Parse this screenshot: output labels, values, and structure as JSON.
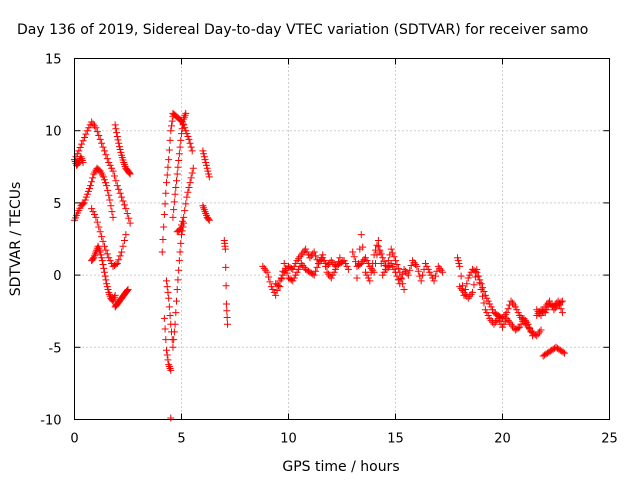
{
  "chart_data": {
    "type": "scatter",
    "title": "Day 136 of 2019, Sidereal Day-to-day VTEC variation (SDTVAR) for receiver samo",
    "xlabel": "GPS time / hours",
    "ylabel": "SDTVAR / TECUs",
    "xlim": [
      0,
      25
    ],
    "ylim": [
      -10,
      15
    ],
    "xticks": [
      0,
      5,
      10,
      15,
      20,
      25
    ],
    "yticks": [
      -10,
      -5,
      0,
      5,
      10,
      15
    ],
    "xtick_labels": [
      "0",
      "5",
      "10",
      "15",
      "20",
      "25"
    ],
    "ytick_labels": [
      "-10",
      "-5",
      "0",
      "5",
      "10",
      "15"
    ],
    "grid": true,
    "marker": "+",
    "color": "#ff0000",
    "segments": [
      {
        "x": [
          0.0,
          0.2,
          0.4,
          0.6,
          0.8,
          1.0,
          1.2,
          1.4,
          1.6,
          1.8,
          2.0,
          2.2,
          2.4,
          2.6
        ],
        "y": [
          8.0,
          8.6,
          9.3,
          10.0,
          10.6,
          10.2,
          9.4,
          8.6,
          7.8,
          7.2,
          6.2,
          5.4,
          4.6,
          3.6
        ]
      },
      {
        "x": [
          0.0,
          0.15,
          0.3,
          0.45,
          0.6,
          0.75,
          0.9,
          1.05,
          1.2,
          1.35,
          1.5,
          1.65,
          1.8
        ],
        "y": [
          3.8,
          4.3,
          4.8,
          5.0,
          5.6,
          6.2,
          7.0,
          7.4,
          7.2,
          6.8,
          6.2,
          5.2,
          4.0
        ]
      },
      {
        "x": [
          0.0,
          0.1,
          0.2,
          0.3,
          0.4
        ],
        "y": [
          8.0,
          7.6,
          7.8,
          8.2,
          7.8
        ]
      },
      {
        "x": [
          0.8,
          0.9,
          1.0,
          1.1,
          1.2,
          1.3,
          1.4,
          1.5,
          1.6,
          1.7,
          1.8,
          1.9
        ],
        "y": [
          1.0,
          1.2,
          1.6,
          2.0,
          1.6,
          1.0,
          0.2,
          -0.6,
          -1.2,
          -1.6,
          -1.8,
          -1.4
        ]
      },
      {
        "x": [
          0.8,
          1.0,
          1.2,
          1.4,
          1.6,
          1.8,
          2.0,
          2.2,
          2.4
        ],
        "y": [
          4.6,
          4.0,
          3.0,
          2.0,
          1.2,
          0.6,
          0.8,
          1.6,
          2.8
        ]
      },
      {
        "x": [
          1.9,
          2.0,
          2.1,
          2.2,
          2.3,
          2.4,
          2.5,
          2.6
        ],
        "y": [
          10.4,
          9.6,
          8.9,
          8.3,
          7.8,
          7.4,
          7.2,
          7.0
        ]
      },
      {
        "x": [
          1.9,
          2.0,
          2.1,
          2.2,
          2.3,
          2.4,
          2.5
        ],
        "y": [
          -2.2,
          -2.0,
          -1.8,
          -1.6,
          -1.4,
          -1.2,
          -1.0
        ]
      },
      {
        "x": [
          4.1,
          4.2,
          4.3,
          4.4,
          4.5,
          4.6
        ],
        "y": [
          1.6,
          4.2,
          6.4,
          8.0,
          10.0,
          11.0
        ]
      },
      {
        "x": [
          4.2,
          4.3,
          4.4,
          4.5
        ],
        "y": [
          -3.0,
          -5.2,
          -6.2,
          -6.6
        ]
      },
      {
        "x": [
          4.3,
          4.4,
          4.5,
          4.6,
          4.7,
          4.8,
          4.9,
          5.0,
          5.1
        ],
        "y": [
          -0.4,
          -1.6,
          -3.4,
          -5.0,
          -3.4,
          -1.0,
          1.0,
          2.8,
          3.6
        ]
      },
      {
        "x": [
          4.6,
          4.7,
          4.8,
          4.9,
          5.0,
          5.1,
          5.2
        ],
        "y": [
          4.0,
          5.6,
          7.0,
          8.4,
          9.8,
          10.8,
          11.2
        ]
      },
      {
        "x": [
          4.6,
          4.75,
          4.9,
          5.05,
          5.2,
          5.35,
          5.5
        ],
        "y": [
          11.2,
          11.0,
          10.8,
          10.6,
          10.0,
          9.4,
          8.6
        ]
      },
      {
        "x": [
          4.8,
          4.95,
          5.1,
          5.25,
          5.4,
          5.55
        ],
        "y": [
          3.0,
          3.2,
          4.0,
          5.4,
          6.4,
          7.4
        ]
      },
      {
        "x": [
          4.5
        ],
        "y": [
          -9.9
        ]
      },
      {
        "x": [
          6.0,
          6.1,
          6.2,
          6.3
        ],
        "y": [
          8.6,
          8.0,
          7.4,
          6.8
        ]
      },
      {
        "x": [
          6.0,
          6.1,
          6.2,
          6.3
        ],
        "y": [
          4.8,
          4.4,
          4.0,
          3.8
        ]
      },
      {
        "x": [
          7.0,
          7.05,
          7.1,
          7.15
        ],
        "y": [
          2.4,
          1.8,
          -2.0,
          -3.4
        ]
      },
      {
        "x": [
          8.8,
          9.0,
          9.2,
          9.4,
          9.6,
          9.8,
          10.0,
          10.2,
          10.4,
          10.6,
          10.8,
          11.0,
          11.2,
          11.4,
          11.6,
          11.8,
          12.0,
          12.2,
          12.4,
          12.6,
          12.8
        ],
        "y": [
          0.6,
          0.2,
          -0.8,
          -1.4,
          -0.4,
          0.2,
          0.6,
          0.4,
          1.0,
          1.4,
          1.8,
          1.2,
          1.6,
          0.8,
          1.2,
          0.6,
          1.0,
          0.6,
          0.8,
          1.0,
          0.4
        ]
      },
      {
        "x": [
          9.4,
          9.6,
          9.8,
          10.0,
          10.2,
          10.4,
          10.6,
          10.8,
          11.0,
          11.2,
          11.4,
          11.6,
          11.8,
          12.0,
          12.2,
          12.4
        ],
        "y": [
          -0.6,
          -0.8,
          0.8,
          -0.2,
          -0.4,
          0.2,
          0.8,
          0.4,
          0.2,
          0.0,
          0.8,
          1.4,
          0.2,
          -0.2,
          0.4,
          1.2
        ]
      },
      {
        "x": [
          13.0,
          13.2,
          13.4,
          13.6,
          13.8,
          14.0,
          14.2,
          14.4,
          14.6,
          14.8,
          15.0,
          15.2,
          15.4,
          15.6,
          15.8,
          16.0,
          16.2,
          16.4,
          16.6,
          16.8,
          17.0,
          17.2
        ],
        "y": [
          1.6,
          0.6,
          0.8,
          1.2,
          0.6,
          0.2,
          2.0,
          1.2,
          0.4,
          0.8,
          0.2,
          -0.6,
          0.4,
          0.0,
          1.0,
          0.6,
          -0.4,
          0.8,
          0.2,
          -0.4,
          0.6,
          0.2
        ]
      },
      {
        "x": [
          13.2,
          13.4,
          13.6,
          13.8,
          14.0,
          14.2,
          14.4,
          14.6,
          14.8,
          15.0,
          15.2,
          15.4
        ],
        "y": [
          -0.2,
          2.8,
          0.2,
          -0.4,
          1.4,
          2.4,
          0.0,
          0.6,
          1.8,
          1.0,
          0.2,
          -1.0
        ]
      },
      {
        "x": [
          17.9,
          18.0,
          18.2,
          18.4,
          18.6,
          18.8,
          19.0,
          19.2,
          19.4,
          19.6,
          19.8,
          20.0,
          20.2,
          20.4,
          20.6,
          20.8,
          21.0,
          21.2,
          21.4,
          21.6,
          21.8
        ],
        "y": [
          1.2,
          0.6,
          -1.4,
          -0.2,
          0.4,
          0.2,
          -0.6,
          -1.4,
          -2.0,
          -2.6,
          -2.8,
          -3.0,
          -2.6,
          -1.8,
          -2.2,
          -2.8,
          -3.2,
          -3.6,
          -4.0,
          -4.2,
          -3.8
        ]
      },
      {
        "x": [
          18.0,
          18.2,
          18.4,
          18.6,
          18.8,
          19.0,
          19.2,
          19.4,
          19.6,
          19.8,
          20.0,
          20.2,
          20.4,
          20.6,
          20.8,
          21.0,
          21.2,
          21.4
        ],
        "y": [
          -0.8,
          -1.2,
          -1.6,
          -1.2,
          0.4,
          -1.0,
          -2.4,
          -3.0,
          -3.4,
          -3.0,
          -3.6,
          -3.0,
          -3.4,
          -3.8,
          -3.6,
          -3.0,
          -3.4,
          -4.2
        ]
      },
      {
        "x": [
          21.6,
          21.8,
          22.0,
          22.2,
          22.4,
          22.6,
          22.8
        ],
        "y": [
          -2.4,
          -2.8,
          -2.2,
          -1.8,
          -2.4,
          -2.0,
          -1.8
        ]
      },
      {
        "x": [
          21.6,
          21.8,
          22.0,
          22.2,
          22.4,
          22.6,
          22.8
        ],
        "y": [
          -2.8,
          -2.4,
          -2.6,
          -2.0,
          -2.2,
          -1.8,
          -2.6
        ]
      },
      {
        "x": [
          21.9,
          22.1,
          22.3,
          22.5,
          22.7,
          22.9
        ],
        "y": [
          -5.6,
          -5.4,
          -5.2,
          -5.0,
          -5.2,
          -5.4
        ]
      }
    ]
  }
}
